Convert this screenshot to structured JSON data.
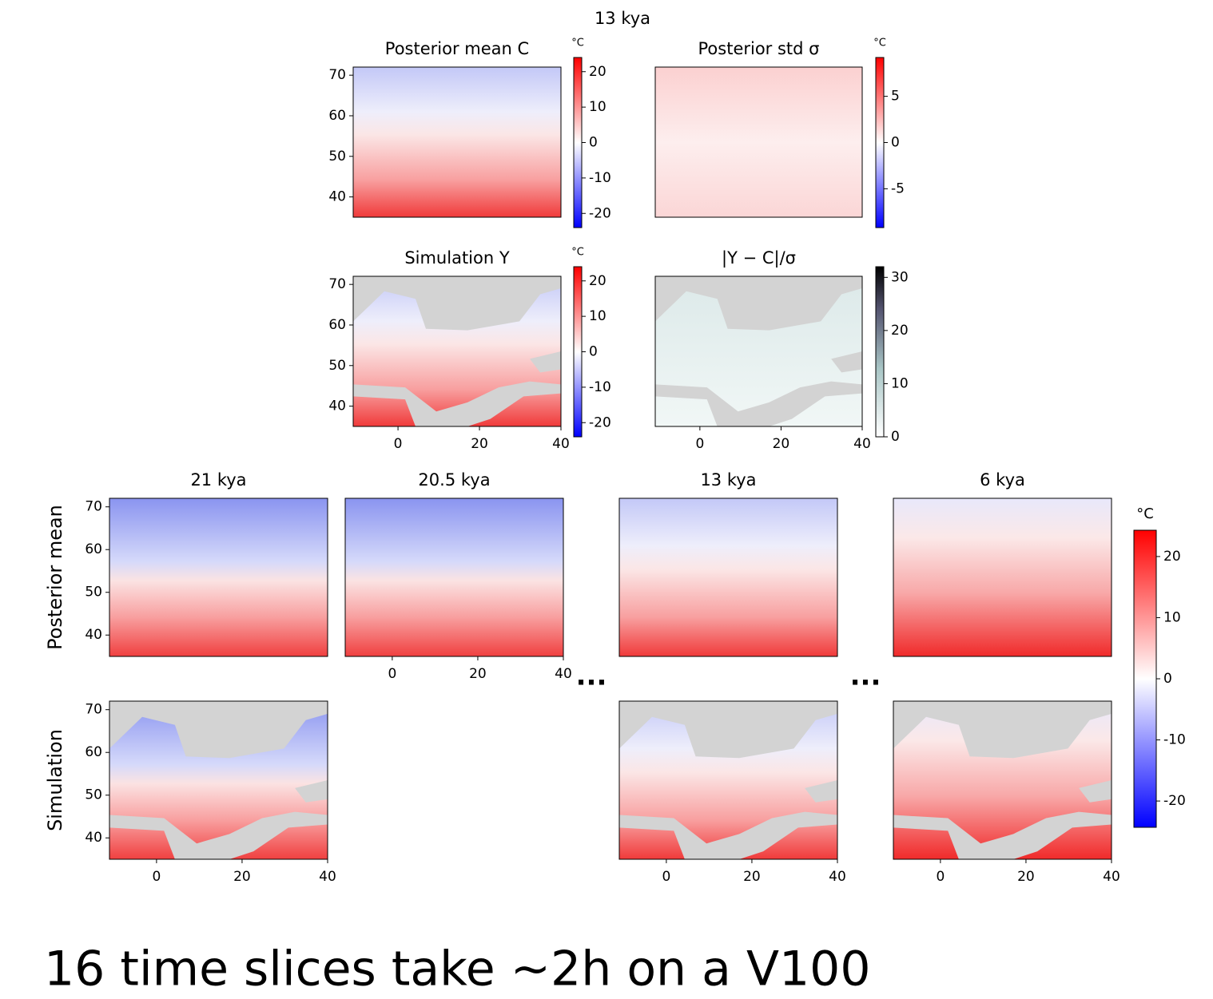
{
  "title": "13 kya",
  "caption": "16 time slices take ~2h on a V100",
  "ellipses": [
    "...",
    "..."
  ],
  "chart_data": [
    {
      "type": "heatmap",
      "title": "Posterior mean C",
      "xlim": [
        -11,
        40
      ],
      "ylim": [
        35,
        72
      ],
      "yticks": [
        40,
        50,
        60,
        70
      ],
      "colorbar": {
        "label": "°C",
        "cmap": "bwr",
        "clim": [
          -24,
          24
        ],
        "ticks": [
          -20,
          -10,
          0,
          10,
          20
        ]
      }
    },
    {
      "type": "heatmap",
      "title": "Posterior std σ",
      "xlim": [
        -11,
        40
      ],
      "ylim": [
        35,
        72
      ],
      "colorbar": {
        "label": "°C",
        "cmap": "bwr",
        "clim": [
          -9.2,
          9.2
        ],
        "ticks": [
          -5,
          0,
          5
        ]
      }
    },
    {
      "type": "heatmap",
      "title": "Simulation Y",
      "xlim": [
        -11,
        40
      ],
      "ylim": [
        35,
        72
      ],
      "xticks": [
        0,
        20,
        40
      ],
      "yticks": [
        40,
        50,
        60,
        70
      ],
      "colorbar": {
        "label": "°C",
        "cmap": "bwr",
        "clim": [
          -24,
          24
        ],
        "ticks": [
          -20,
          -10,
          0,
          10,
          20
        ]
      }
    },
    {
      "type": "heatmap",
      "title": "|Y − C|/σ",
      "xlim": [
        -11,
        40
      ],
      "ylim": [
        35,
        72
      ],
      "xticks": [
        0,
        20,
        40
      ],
      "colorbar": {
        "cmap": "bone_r",
        "clim": [
          0,
          32
        ],
        "ticks": [
          0,
          10,
          20,
          30
        ]
      }
    },
    {
      "type": "heatmap",
      "title": "21 kya",
      "ylabel": "Posterior mean",
      "xlim": [
        -11,
        40
      ],
      "ylim": [
        35,
        72
      ],
      "yticks": [
        40,
        50,
        60,
        70
      ]
    },
    {
      "type": "heatmap",
      "title": "20.5 kya",
      "xlim": [
        -11,
        40
      ],
      "ylim": [
        35,
        72
      ],
      "xticks": [
        0,
        20,
        40
      ]
    },
    {
      "type": "heatmap",
      "title": "13 kya",
      "xlim": [
        -11,
        40
      ],
      "ylim": [
        35,
        72
      ]
    },
    {
      "type": "heatmap",
      "title": "6 kya",
      "xlim": [
        -11,
        40
      ],
      "ylim": [
        35,
        72
      ],
      "colorbar": {
        "label": "°C",
        "cmap": "bwr",
        "clim": [
          -24.3,
          24.3
        ],
        "ticks": [
          -20,
          -10,
          0,
          10,
          20
        ]
      }
    },
    {
      "type": "heatmap",
      "ylabel": "Simulation",
      "xlim": [
        -11,
        40
      ],
      "ylim": [
        35,
        72
      ],
      "xticks": [
        0,
        20,
        40
      ],
      "yticks": [
        40,
        50,
        60,
        70
      ]
    },
    {
      "type": "heatmap",
      "xlim": [
        -11,
        40
      ],
      "ylim": [
        35,
        72
      ],
      "xticks": [
        0,
        20,
        40
      ]
    },
    {
      "type": "heatmap",
      "xlim": [
        -11,
        40
      ],
      "ylim": [
        35,
        72
      ],
      "xticks": [
        0,
        20,
        40
      ]
    }
  ]
}
